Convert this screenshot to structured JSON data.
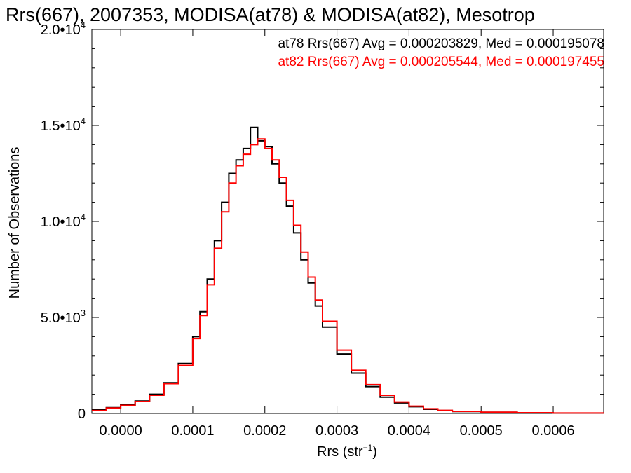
{
  "chart_data": {
    "type": "line",
    "title": "Rrs(667), 2007353, MODISA(at78) & MODISA(at82), Mesotrop",
    "xlabel_main": "Rrs (str",
    "xlabel_sup": "−1",
    "xlabel_close": ")",
    "ylabel": "Number of Observations",
    "xlim": [
      -4e-05,
      0.00067
    ],
    "ylim": [
      0,
      20000
    ],
    "x_ticks": [
      {
        "value": 0.0,
        "label": "0.0000"
      },
      {
        "value": 0.0001,
        "label": "0.0001"
      },
      {
        "value": 0.0002,
        "label": "0.0002"
      },
      {
        "value": 0.0003,
        "label": "0.0003"
      },
      {
        "value": 0.0004,
        "label": "0.0004"
      },
      {
        "value": 0.0005,
        "label": "0.0005"
      },
      {
        "value": 0.0006,
        "label": "0.0006"
      }
    ],
    "y_ticks": [
      {
        "value": 0,
        "mant": "0",
        "exp": ""
      },
      {
        "value": 5000,
        "mant": "5.0•10",
        "exp": "3"
      },
      {
        "value": 10000,
        "mant": "1.0•10",
        "exp": "4"
      },
      {
        "value": 15000,
        "mant": "1.5•10",
        "exp": "4"
      },
      {
        "value": 20000,
        "mant": "2.0•10",
        "exp": "4"
      }
    ],
    "series": [
      {
        "name": "at78 Rrs(667) Avg = 0.000203829, Med = 0.000195078",
        "color": "#000000",
        "x": [
          -4e-05,
          -2e-05,
          0.0,
          2e-05,
          4e-05,
          6e-05,
          8e-05,
          0.0001,
          0.00011,
          0.00012,
          0.00013,
          0.00014,
          0.00015,
          0.00016,
          0.00017,
          0.00018,
          0.00019,
          0.0002,
          0.00021,
          0.00022,
          0.00023,
          0.00024,
          0.00025,
          0.00026,
          0.00027,
          0.00028,
          0.0003,
          0.00032,
          0.00034,
          0.00036,
          0.00038,
          0.0004,
          0.00042,
          0.00044,
          0.00046,
          0.0005,
          0.00055,
          0.0006,
          0.00067
        ],
        "y": [
          200,
          300,
          450,
          650,
          1000,
          1600,
          2600,
          4000,
          5300,
          7000,
          9000,
          11000,
          12500,
          13200,
          13800,
          14900,
          14200,
          13900,
          13000,
          12000,
          10800,
          9400,
          8000,
          6800,
          5600,
          4500,
          3100,
          2100,
          1400,
          850,
          550,
          350,
          220,
          150,
          100,
          60,
          30,
          20,
          10
        ]
      },
      {
        "name": "at82 Rrs(667) Avg = 0.000205544, Med = 0.000197455",
        "color": "#ff0000",
        "x": [
          -4e-05,
          -2e-05,
          0.0,
          2e-05,
          4e-05,
          6e-05,
          8e-05,
          0.0001,
          0.00011,
          0.00012,
          0.00013,
          0.00014,
          0.00015,
          0.00016,
          0.00017,
          0.00018,
          0.00019,
          0.0002,
          0.00021,
          0.00022,
          0.00023,
          0.00024,
          0.00025,
          0.00026,
          0.00027,
          0.00028,
          0.0003,
          0.00032,
          0.00034,
          0.00036,
          0.00038,
          0.0004,
          0.00042,
          0.00044,
          0.00046,
          0.0005,
          0.00055,
          0.0006,
          0.00067
        ],
        "y": [
          150,
          280,
          420,
          620,
          950,
          1550,
          2500,
          3900,
          5100,
          6700,
          8600,
          10500,
          12000,
          12900,
          13500,
          14000,
          14300,
          13800,
          13200,
          12300,
          11100,
          9800,
          8400,
          7100,
          5900,
          4800,
          3300,
          2250,
          1500,
          950,
          600,
          380,
          240,
          160,
          110,
          65,
          35,
          22,
          10
        ]
      }
    ]
  }
}
